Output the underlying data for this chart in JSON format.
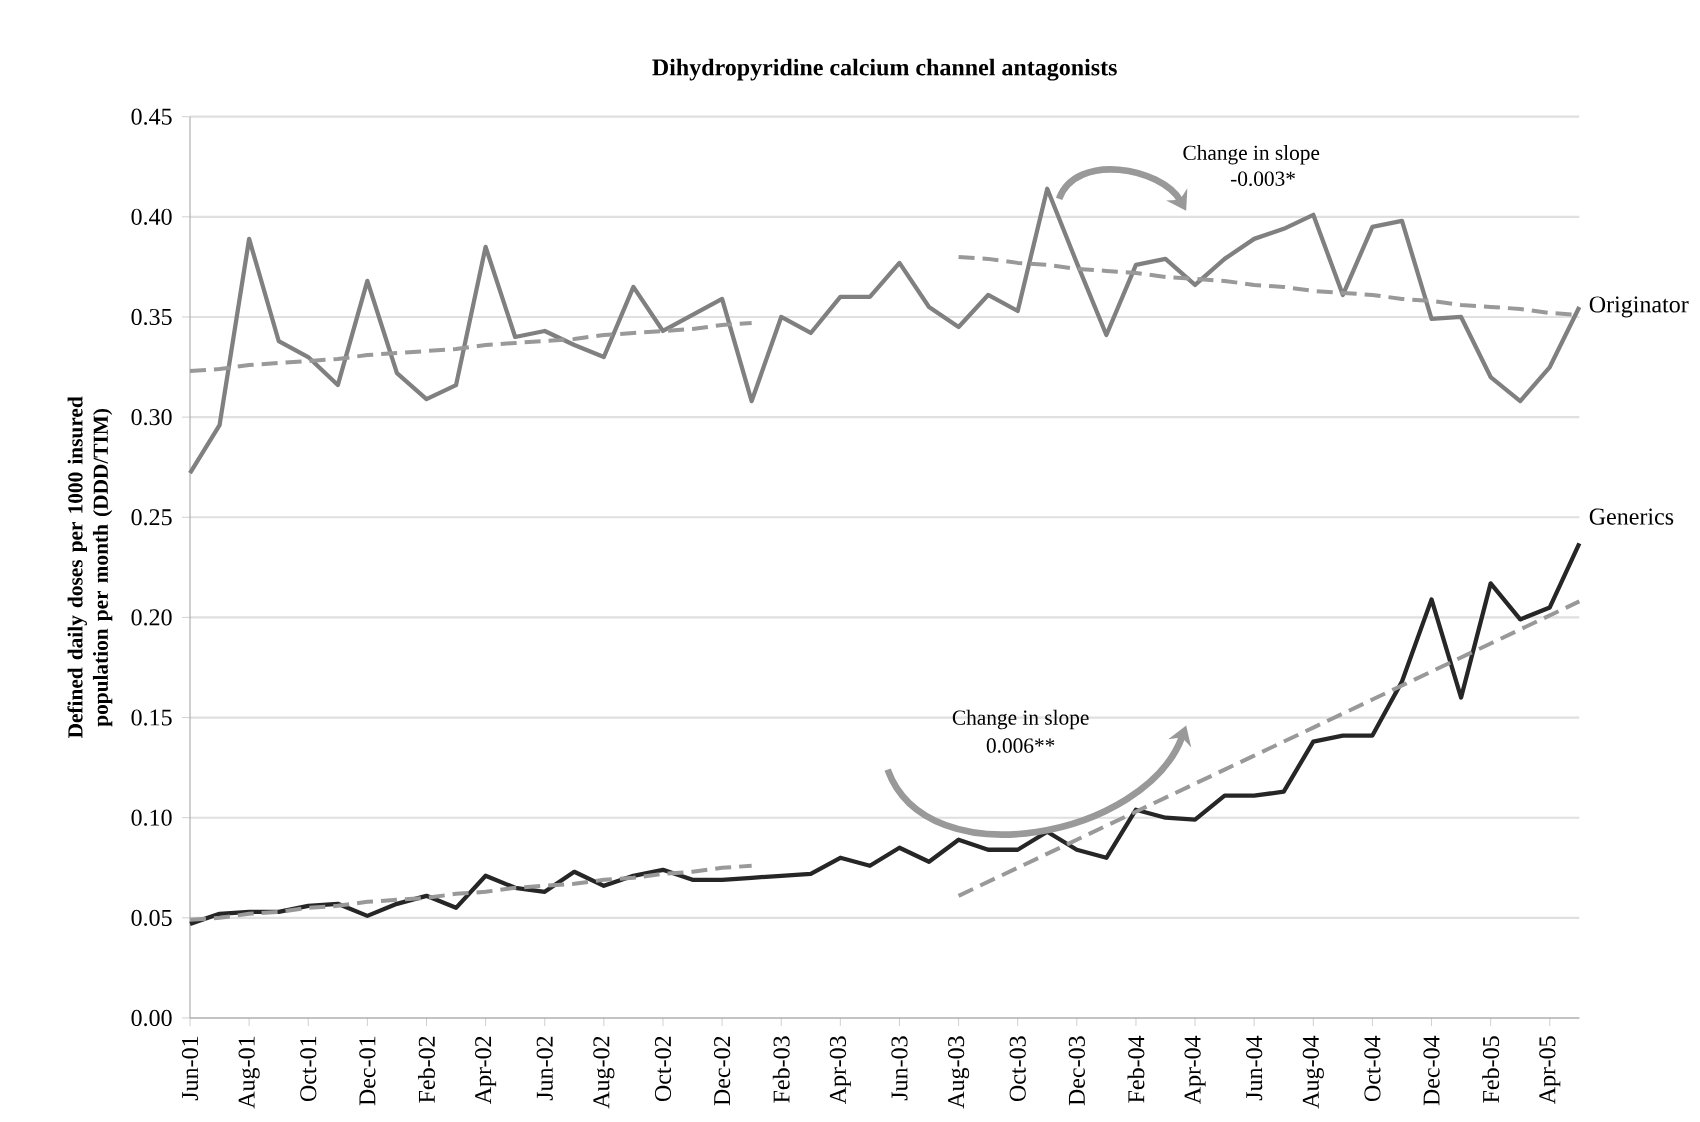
{
  "chart_data": {
    "type": "line",
    "title": "Dihydropyridine calcium channel antagonists",
    "ylabel": "Defined daily doses per 1000 insured population  per month (DDD/TIM)",
    "categories": [
      "Jun-01",
      null,
      "Aug-01",
      null,
      "Oct-01",
      null,
      "Dec-01",
      null,
      "Feb-02",
      null,
      "Apr-02",
      null,
      "Jun-02",
      null,
      "Aug-02",
      null,
      "Oct-02",
      null,
      "Dec-02",
      null,
      "Feb-03",
      null,
      "Apr-03",
      null,
      "Jun-03",
      null,
      "Aug-03",
      null,
      "Oct-03",
      null,
      "Dec-03",
      null,
      "Feb-04",
      null,
      "Apr-04",
      null,
      "Jun-04",
      null,
      "Aug-04",
      null,
      "Oct-04",
      null,
      "Dec-04",
      null,
      "Feb-05",
      null,
      "Apr-05",
      null
    ],
    "series": [
      {
        "name": "Originator",
        "color": "#808080",
        "line_style": "solid",
        "values": [
          0.272,
          0.296,
          0.389,
          0.338,
          0.33,
          0.316,
          0.368,
          0.322,
          0.309,
          0.316,
          0.385,
          0.34,
          0.343,
          0.336,
          0.33,
          0.365,
          0.343,
          0.351,
          0.359,
          0.308,
          0.35,
          0.342,
          0.36,
          0.36,
          0.377,
          0.355,
          0.345,
          0.361,
          0.353,
          0.414,
          0.377,
          0.341,
          0.376,
          0.379,
          0.366,
          0.379,
          0.389,
          0.394,
          0.401,
          0.361,
          0.395,
          0.398,
          0.349,
          0.35,
          0.32,
          0.308,
          0.325,
          0.355
        ]
      },
      {
        "name": "Generics",
        "color": "#262626",
        "line_style": "solid",
        "values": [
          0.047,
          0.052,
          0.053,
          0.053,
          0.056,
          0.057,
          0.051,
          0.057,
          0.061,
          0.055,
          0.071,
          0.065,
          0.063,
          0.073,
          0.066,
          0.071,
          0.074,
          0.069,
          0.069,
          0.07,
          0.071,
          0.072,
          0.08,
          0.076,
          0.085,
          0.078,
          0.089,
          0.084,
          0.084,
          0.093,
          0.084,
          0.08,
          0.104,
          0.1,
          0.099,
          0.111,
          0.111,
          0.113,
          0.138,
          0.141,
          0.141,
          0.168,
          0.209,
          0.16,
          0.217,
          0.199,
          0.205,
          0.237
        ]
      },
      {
        "color": "#999999",
        "line_style": "dashed",
        "values": [
          0.323,
          0.324,
          0.326,
          0.327,
          0.328,
          0.329,
          0.331,
          0.332,
          0.333,
          0.334,
          0.336,
          0.337,
          0.338,
          0.339,
          0.341,
          0.342,
          0.343,
          0.344,
          0.346,
          0.347,
          null,
          null,
          null,
          null,
          null,
          null,
          null,
          null,
          null,
          null,
          null,
          null,
          null,
          null,
          null,
          null,
          null,
          null,
          null,
          null,
          null,
          null,
          null,
          null,
          null,
          null,
          null,
          null
        ]
      },
      {
        "color": "#999999",
        "line_style": "dashed",
        "values": [
          null,
          null,
          null,
          null,
          null,
          null,
          null,
          null,
          null,
          null,
          null,
          null,
          null,
          null,
          null,
          null,
          null,
          null,
          null,
          null,
          null,
          null,
          null,
          null,
          null,
          null,
          0.38,
          0.379,
          0.377,
          0.376,
          0.374,
          0.373,
          0.372,
          0.37,
          0.369,
          0.368,
          0.366,
          0.365,
          0.363,
          0.362,
          0.361,
          0.359,
          0.358,
          0.356,
          0.355,
          0.354,
          0.352,
          0.351
        ]
      },
      {
        "color": "#999999",
        "line_style": "dashed",
        "values": [
          0.049,
          0.05,
          0.052,
          0.053,
          0.055,
          0.056,
          0.058,
          0.059,
          0.06,
          0.062,
          0.063,
          0.065,
          0.066,
          0.067,
          0.069,
          0.07,
          0.072,
          0.073,
          0.075,
          0.076,
          null,
          null,
          null,
          null,
          null,
          null,
          null,
          null,
          null,
          null,
          null,
          null,
          null,
          null,
          null,
          null,
          null,
          null,
          null,
          null,
          null,
          null,
          null,
          null,
          null,
          null,
          null,
          null
        ]
      },
      {
        "color": "#999999",
        "line_style": "dashed",
        "values": [
          null,
          null,
          null,
          null,
          null,
          null,
          null,
          null,
          null,
          null,
          null,
          null,
          null,
          null,
          null,
          null,
          null,
          null,
          null,
          null,
          null,
          null,
          null,
          null,
          null,
          null,
          0.061,
          0.068,
          0.075,
          0.082,
          0.089,
          0.096,
          0.103,
          0.11,
          0.117,
          0.124,
          0.131,
          0.138,
          0.145,
          0.152,
          0.159,
          0.166,
          0.173,
          0.18,
          0.187,
          0.194,
          0.201,
          0.208
        ]
      }
    ],
    "ylim": [
      0,
      0.45
    ],
    "yticks": [
      {
        "value": 0,
        "label": "0.00"
      },
      {
        "value": 0.05,
        "label": "0.05"
      },
      {
        "value": 0.1,
        "label": "0.10"
      },
      {
        "value": 0.15,
        "label": "0.15"
      },
      {
        "value": 0.2,
        "label": "0.20"
      },
      {
        "value": 0.25,
        "label": "0.25"
      },
      {
        "value": 0.3,
        "label": "0.30"
      },
      {
        "value": 0.35,
        "label": "0.35"
      },
      {
        "value": 0.4,
        "label": "0.40"
      },
      {
        "value": 0.45,
        "label": "0.45"
      }
    ],
    "annotations": [
      "Change in slope",
      "-0.003*",
      "Change in slope",
      "0.006**"
    ],
    "grid": "y",
    "legend": false,
    "marker": "none"
  }
}
